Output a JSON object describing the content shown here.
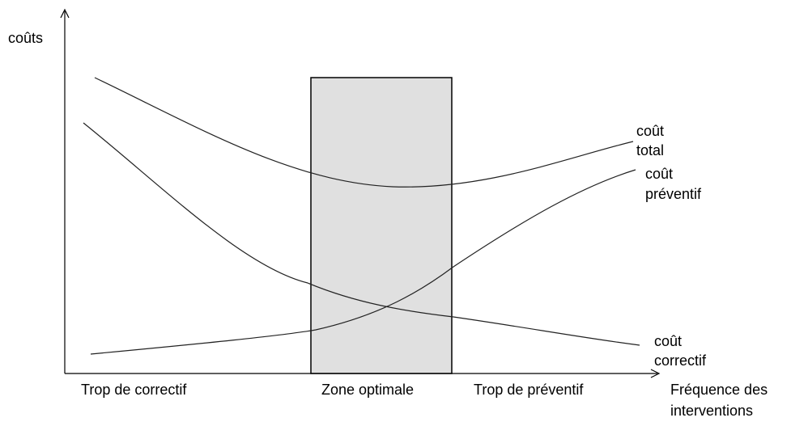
{
  "axes": {
    "y_label": "coûts",
    "x_label": [
      "Fréquence des",
      "interventions"
    ]
  },
  "zones": [
    "Trop de correctif",
    "Zone optimale",
    "Trop de préventif"
  ],
  "curves": [
    {
      "label": [
        "coût",
        "total"
      ]
    },
    {
      "label": [
        "coût",
        "préventif"
      ]
    },
    {
      "label": [
        "coût",
        "correctif"
      ]
    }
  ]
}
